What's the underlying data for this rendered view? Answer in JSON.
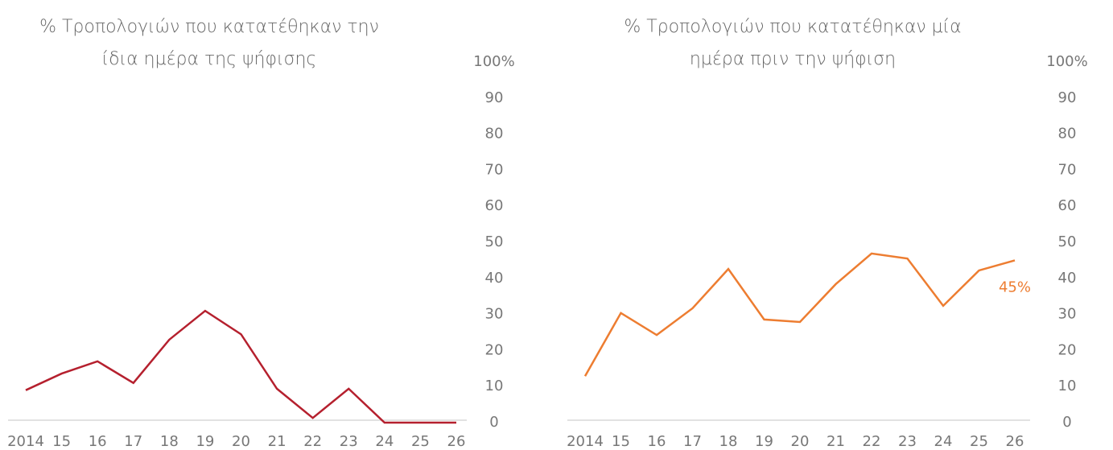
{
  "chart_data": [
    {
      "type": "line",
      "title": "% Τροπολογιών που κατατέθηκαν την ίδια ημέρα της ψήφισης",
      "categories": [
        "2014",
        "15",
        "16",
        "17",
        "18",
        "19",
        "20",
        "21",
        "22",
        "23",
        "24",
        "25",
        "26"
      ],
      "series": [
        {
          "color": "#b5202e",
          "values": [
            9,
            13.6,
            17,
            11,
            23,
            31,
            24.5,
            9.4,
            1.3,
            9.4,
            0,
            0,
            0
          ]
        }
      ],
      "ylim": [
        0,
        100
      ],
      "yticks": [
        0,
        10,
        20,
        30,
        40,
        50,
        60,
        70,
        80,
        90,
        {
          "value": 100,
          "label": "100%"
        }
      ],
      "grid": false
    },
    {
      "type": "line",
      "title": "% Τροπολογιών που κατατέθηκαν μία ημέρα πριν την ψήφιση",
      "categories": [
        "2014",
        "15",
        "16",
        "17",
        "18",
        "19",
        "20",
        "21",
        "22",
        "23",
        "24",
        "25",
        "26"
      ],
      "series": [
        {
          "color": "#ed7d31",
          "values": [
            12.9,
            30.4,
            24.3,
            31.7,
            42.6,
            28.6,
            27.9,
            38.4,
            46.9,
            45.5,
            32.4,
            42.2,
            45
          ],
          "value_labels": [
            null,
            null,
            null,
            null,
            null,
            null,
            null,
            null,
            null,
            null,
            null,
            null,
            "45%"
          ]
        }
      ],
      "ylim": [
        0,
        100
      ],
      "yticks": [
        0,
        10,
        20,
        30,
        40,
        50,
        60,
        70,
        80,
        90,
        {
          "value": 100,
          "label": "100%"
        }
      ],
      "grid": false
    }
  ]
}
